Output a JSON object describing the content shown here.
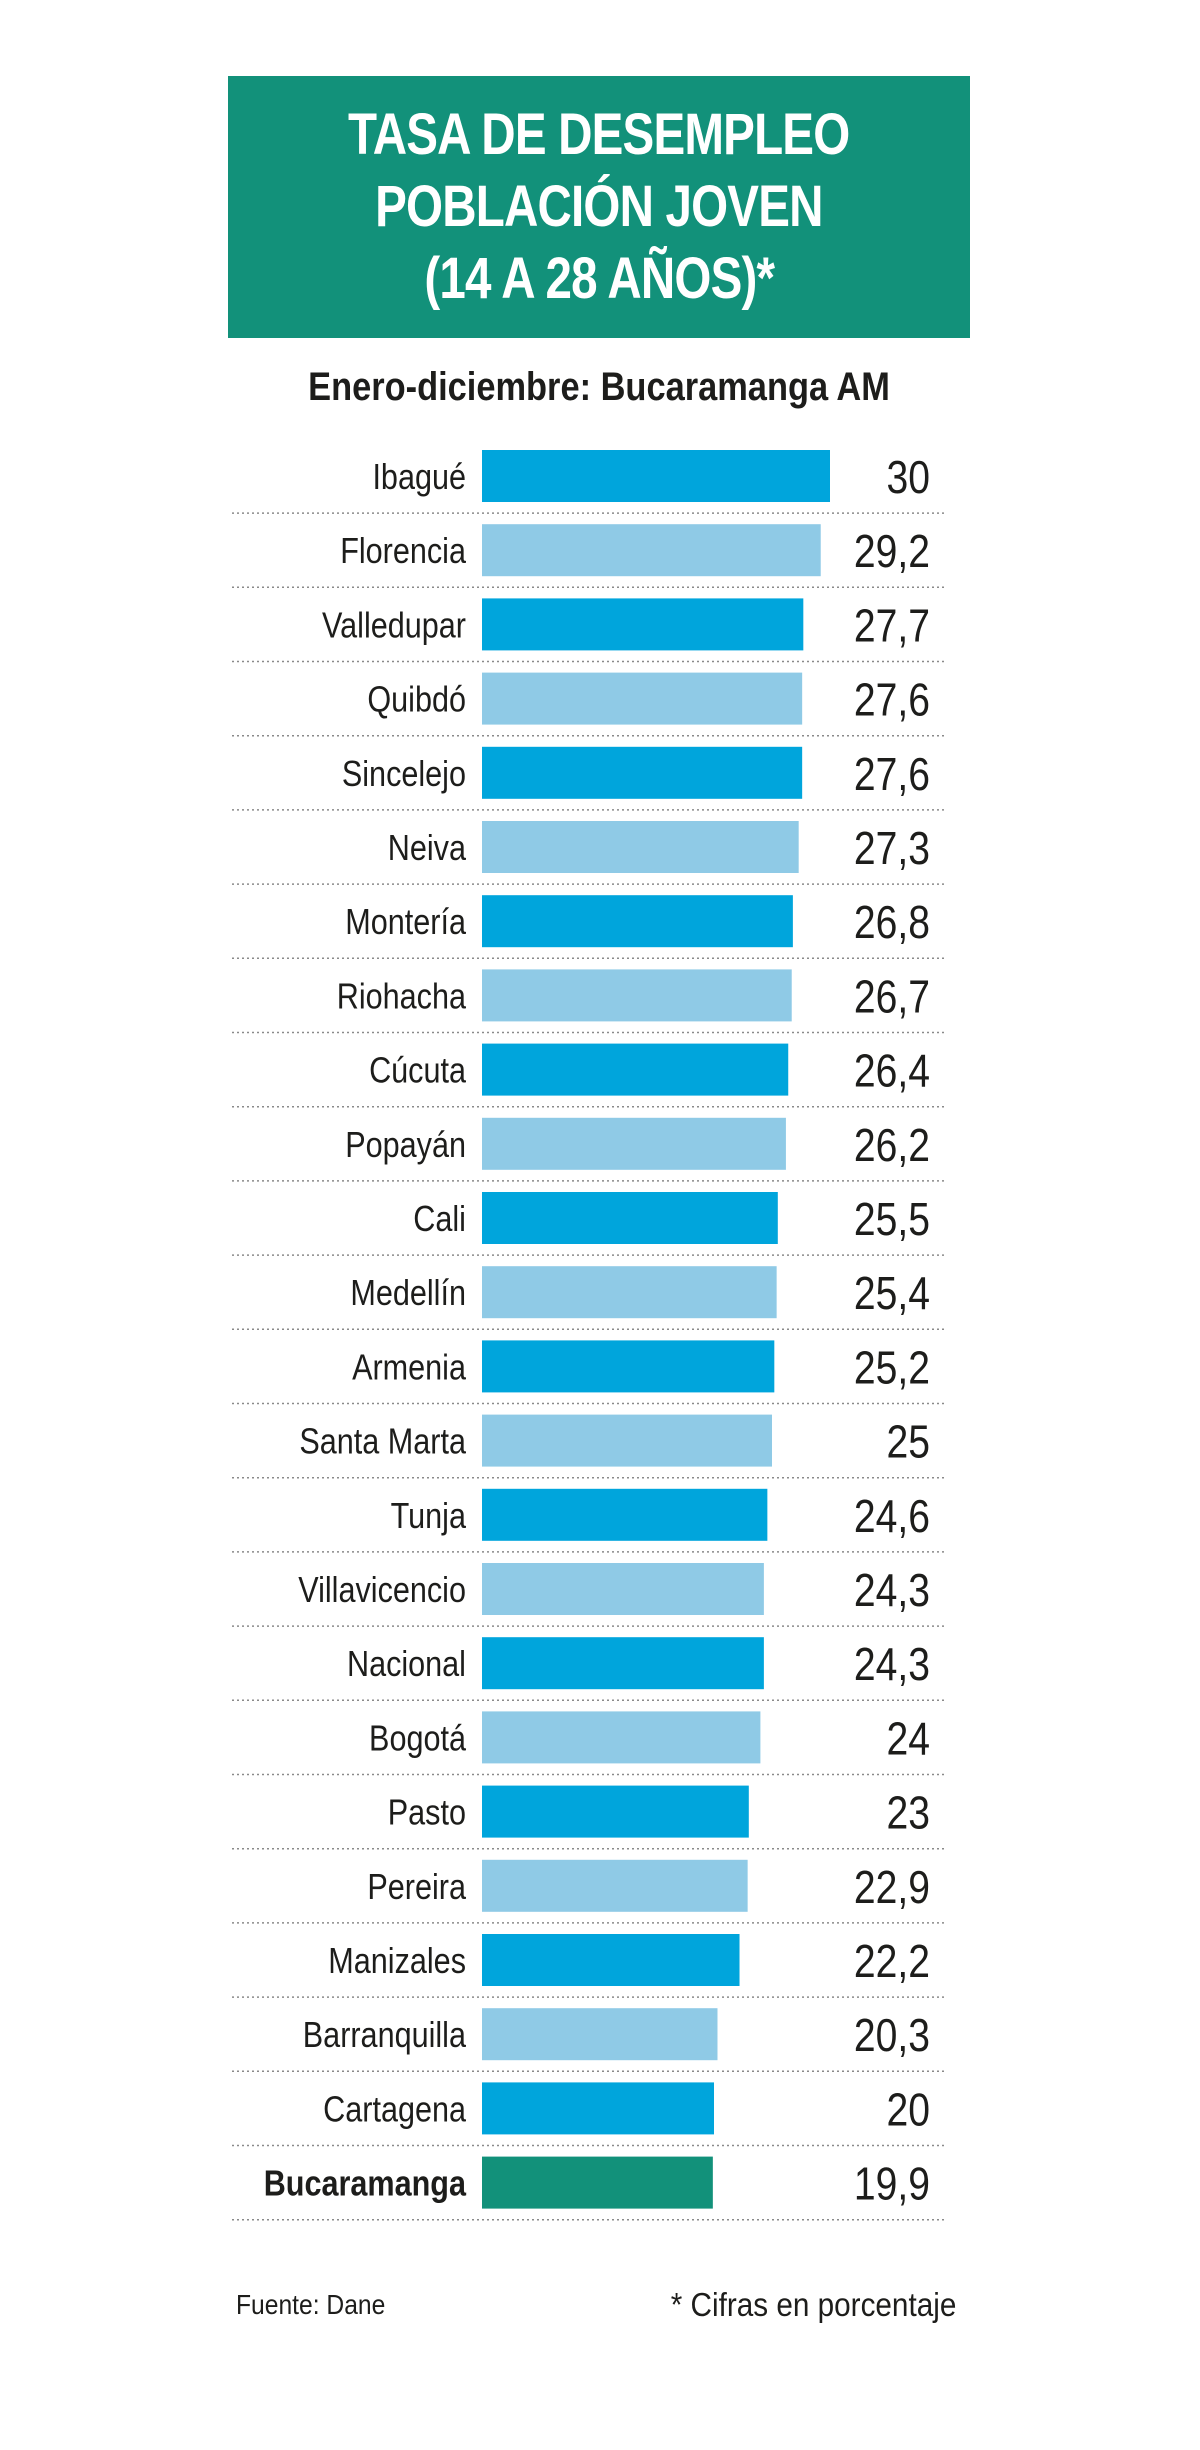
{
  "header": {
    "title_lines": [
      "TASA DE DESEMPLEO",
      "POBLACIÓN JOVEN",
      "(14 A 28 AÑOS)*"
    ],
    "subtitle": "Enero-diciembre: Bucaramanga AM"
  },
  "colors": {
    "title_bg": "#12917a",
    "bar_dark": "#00a5dc",
    "bar_light": "#8fcae6",
    "bar_highlight": "#12917a",
    "separator": "#8a8a8a"
  },
  "chart_data": {
    "type": "bar",
    "orientation": "horizontal",
    "title": "TASA DE DESEMPLEO POBLACIÓN JOVEN (14 A 28 AÑOS)*",
    "subtitle": "Enero-diciembre: Bucaramanga AM",
    "unit": "porcentaje",
    "xlim": [
      0,
      30
    ],
    "categories": [
      "Ibagué",
      "Florencia",
      "Valledupar",
      "Quibdó",
      "Sincelejo",
      "Neiva",
      "Montería",
      "Riohacha",
      "Cúcuta",
      "Popayán",
      "Cali",
      "Medellín",
      "Armenia",
      "Santa Marta",
      "Tunja",
      "Villavicencio",
      "Nacional",
      "Bogotá",
      "Pasto",
      "Pereira",
      "Manizales",
      "Barranquilla",
      "Cartagena",
      "Bucaramanga"
    ],
    "values": [
      30,
      29.2,
      27.7,
      27.6,
      27.6,
      27.3,
      26.8,
      26.7,
      26.4,
      26.2,
      25.5,
      25.4,
      25.2,
      25,
      24.6,
      24.3,
      24.3,
      24,
      23,
      22.9,
      22.2,
      20.3,
      20,
      19.9
    ],
    "value_labels": [
      "30",
      "29,2",
      "27,7",
      "27,6",
      "27,6",
      "27,3",
      "26,8",
      "26,7",
      "26,4",
      "26,2",
      "25,5",
      "25,4",
      "25,2",
      "25",
      "24,6",
      "24,3",
      "24,3",
      "24",
      "23",
      "22,9",
      "22,2",
      "20,3",
      "20",
      "19,9"
    ],
    "highlight": "Bucaramanga"
  },
  "footer": {
    "source": "Fuente: Dane",
    "note": "* Cifras en porcentaje"
  }
}
